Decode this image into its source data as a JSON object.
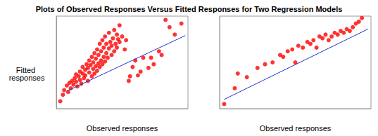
{
  "chart_data": [
    {
      "type": "scatter",
      "title": "Plots of Observed Responses Versus Fitted Responses for Two Regression Models",
      "xlabel": "Observed responses",
      "ylabel": "Fitted responses",
      "xlim": [
        0,
        100
      ],
      "ylim": [
        0,
        100
      ],
      "tick_labels": false,
      "grid": false,
      "series": [
        {
          "type": "scatter",
          "color": "#ff0000",
          "marker": "circle",
          "x": [
            3,
            5,
            6,
            8,
            9,
            10,
            11,
            12,
            13,
            14,
            15,
            15,
            16,
            17,
            18,
            18,
            19,
            20,
            20,
            21,
            22,
            22,
            23,
            24,
            24,
            25,
            25,
            26,
            27,
            27,
            28,
            28,
            29,
            29,
            30,
            30,
            31,
            31,
            32,
            32,
            33,
            33,
            34,
            34,
            35,
            35,
            36,
            36,
            37,
            37,
            38,
            38,
            39,
            40,
            40,
            41,
            42,
            42,
            43,
            44,
            44,
            45,
            46,
            46,
            47,
            48,
            48,
            50,
            52,
            53,
            55,
            56,
            58,
            60,
            62,
            64,
            66,
            70,
            72,
            74,
            78,
            80,
            83,
            86,
            90,
            95
          ],
          "values": [
            8,
            15,
            20,
            25,
            18,
            28,
            22,
            30,
            26,
            33,
            29,
            37,
            24,
            35,
            31,
            40,
            27,
            38,
            45,
            33,
            42,
            36,
            48,
            30,
            44,
            39,
            52,
            47,
            35,
            56,
            43,
            50,
            38,
            60,
            46,
            54,
            41,
            64,
            49,
            58,
            45,
            70,
            52,
            62,
            48,
            74,
            56,
            66,
            51,
            78,
            60,
            70,
            55,
            65,
            82,
            72,
            58,
            68,
            76,
            62,
            85,
            70,
            66,
            80,
            75,
            72,
            90,
            78,
            64,
            74,
            30,
            35,
            45,
            52,
            36,
            40,
            55,
            44,
            55,
            48,
            62,
            58,
            96,
            88,
            80,
            92
          ]
        },
        {
          "type": "line",
          "color": "#2233cc",
          "x": [
            8,
            98
          ],
          "values": [
            19,
            79
          ]
        }
      ]
    },
    {
      "type": "scatter",
      "xlabel": "Observed responses",
      "xlim": [
        0,
        100
      ],
      "ylim": [
        0,
        100
      ],
      "tick_labels": false,
      "grid": false,
      "series": [
        {
          "type": "scatter",
          "color": "#ff0000",
          "marker": "circle",
          "x": [
            3,
            10,
            12,
            18,
            25,
            30,
            35,
            40,
            42,
            45,
            48,
            50,
            52,
            55,
            58,
            60,
            62,
            64,
            66,
            68,
            70,
            72,
            74,
            76,
            78,
            80,
            82,
            84,
            86,
            88,
            90,
            92,
            94
          ],
          "values": [
            5,
            22,
            38,
            34,
            44,
            48,
            50,
            58,
            56,
            62,
            64,
            50,
            68,
            66,
            72,
            70,
            74,
            66,
            78,
            76,
            80,
            74,
            78,
            82,
            80,
            84,
            82,
            86,
            84,
            88,
            92,
            94,
            98
          ]
        },
        {
          "type": "line",
          "color": "#2233cc",
          "x": [
            3,
            98
          ],
          "values": [
            10,
            86
          ]
        }
      ]
    }
  ]
}
